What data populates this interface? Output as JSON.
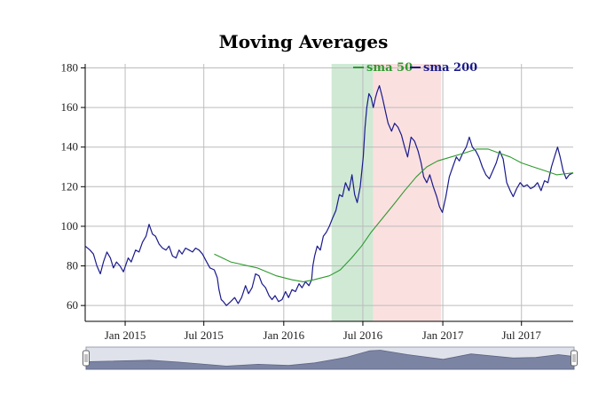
{
  "colors": {
    "price": "#1a1a8c",
    "sma50": "#2e9a2e",
    "sma200": "#1a1a8c",
    "band_green": "#cfe9d5",
    "band_red": "#fbe0e0",
    "grid": "#bcbcbc",
    "range_fill": "#7b84a3",
    "range_bg": "#dfe2ea"
  },
  "range_selector": {
    "left_handle_icon": "range-handle-icon",
    "right_handle_icon": "range-handle-icon"
  },
  "chart_data": {
    "type": "line",
    "title": "Moving Averages",
    "xlabel": "",
    "ylabel": "",
    "xlim": [
      "2014-10-01",
      "2017-10-28"
    ],
    "ylim": [
      52,
      182
    ],
    "yticks": [
      60,
      80,
      100,
      120,
      140,
      160,
      180
    ],
    "xticks": [
      {
        "date": "2015-01-01",
        "label": "Jan 2015"
      },
      {
        "date": "2015-07-01",
        "label": "Jul 2015"
      },
      {
        "date": "2016-01-01",
        "label": "Jan 2016"
      },
      {
        "date": "2016-07-01",
        "label": "Jul 2016"
      },
      {
        "date": "2017-01-01",
        "label": "Jan 2017"
      },
      {
        "date": "2017-07-01",
        "label": "Jul 2017"
      }
    ],
    "grid": true,
    "legend": {
      "placement": "top-right"
    },
    "highlight_bands": [
      {
        "start": "2016-04-20",
        "end": "2016-07-25",
        "color": "green"
      },
      {
        "start": "2016-07-25",
        "end": "2016-12-28",
        "color": "red"
      }
    ],
    "series": [
      {
        "key": "price",
        "legend": false,
        "points": [
          [
            "2014-10-01",
            90
          ],
          [
            "2014-10-12",
            88
          ],
          [
            "2014-10-20",
            86
          ],
          [
            "2014-10-28",
            80
          ],
          [
            "2014-11-05",
            76
          ],
          [
            "2014-11-12",
            82
          ],
          [
            "2014-11-20",
            87
          ],
          [
            "2014-11-28",
            84
          ],
          [
            "2014-12-05",
            79
          ],
          [
            "2014-12-12",
            82
          ],
          [
            "2014-12-20",
            80
          ],
          [
            "2014-12-28",
            77
          ],
          [
            "2015-01-08",
            84
          ],
          [
            "2015-01-15",
            82
          ],
          [
            "2015-01-25",
            88
          ],
          [
            "2015-02-02",
            87
          ],
          [
            "2015-02-10",
            92
          ],
          [
            "2015-02-18",
            95
          ],
          [
            "2015-02-25",
            101
          ],
          [
            "2015-03-05",
            96
          ],
          [
            "2015-03-12",
            95
          ],
          [
            "2015-03-20",
            91
          ],
          [
            "2015-03-28",
            89
          ],
          [
            "2015-04-05",
            88
          ],
          [
            "2015-04-12",
            90
          ],
          [
            "2015-04-20",
            85
          ],
          [
            "2015-04-28",
            84
          ],
          [
            "2015-05-05",
            88
          ],
          [
            "2015-05-12",
            86
          ],
          [
            "2015-05-20",
            89
          ],
          [
            "2015-05-28",
            88
          ],
          [
            "2015-06-05",
            87
          ],
          [
            "2015-06-12",
            89
          ],
          [
            "2015-06-20",
            88
          ],
          [
            "2015-06-28",
            86
          ],
          [
            "2015-07-05",
            83
          ],
          [
            "2015-07-15",
            79
          ],
          [
            "2015-07-25",
            78
          ],
          [
            "2015-08-01",
            74
          ],
          [
            "2015-08-05",
            68
          ],
          [
            "2015-08-10",
            63
          ],
          [
            "2015-08-15",
            62
          ],
          [
            "2015-08-22",
            60
          ],
          [
            "2015-09-01",
            62
          ],
          [
            "2015-09-10",
            64
          ],
          [
            "2015-09-18",
            61
          ],
          [
            "2015-09-26",
            64
          ],
          [
            "2015-10-05",
            70
          ],
          [
            "2015-10-12",
            66
          ],
          [
            "2015-10-20",
            69
          ],
          [
            "2015-10-28",
            76
          ],
          [
            "2015-11-05",
            75
          ],
          [
            "2015-11-12",
            71
          ],
          [
            "2015-11-20",
            69
          ],
          [
            "2015-11-28",
            65
          ],
          [
            "2015-12-05",
            63
          ],
          [
            "2015-12-12",
            65
          ],
          [
            "2015-12-20",
            62
          ],
          [
            "2015-12-28",
            63
          ],
          [
            "2016-01-05",
            67
          ],
          [
            "2016-01-12",
            64
          ],
          [
            "2016-01-20",
            68
          ],
          [
            "2016-01-28",
            67
          ],
          [
            "2016-02-05",
            71
          ],
          [
            "2016-02-12",
            69
          ],
          [
            "2016-02-20",
            72
          ],
          [
            "2016-02-28",
            70
          ],
          [
            "2016-03-05",
            73
          ],
          [
            "2016-03-08",
            80
          ],
          [
            "2016-03-12",
            85
          ],
          [
            "2016-03-18",
            90
          ],
          [
            "2016-03-25",
            88
          ],
          [
            "2016-04-01",
            95
          ],
          [
            "2016-04-08",
            97
          ],
          [
            "2016-04-15",
            100
          ],
          [
            "2016-04-22",
            104
          ],
          [
            "2016-04-30",
            108
          ],
          [
            "2016-05-08",
            116
          ],
          [
            "2016-05-15",
            115
          ],
          [
            "2016-05-22",
            122
          ],
          [
            "2016-05-30",
            118
          ],
          [
            "2016-06-06",
            126
          ],
          [
            "2016-06-12",
            116
          ],
          [
            "2016-06-18",
            112
          ],
          [
            "2016-06-25",
            120
          ],
          [
            "2016-07-02",
            135
          ],
          [
            "2016-07-06",
            150
          ],
          [
            "2016-07-10",
            160
          ],
          [
            "2016-07-15",
            167
          ],
          [
            "2016-07-20",
            165
          ],
          [
            "2016-07-25",
            160
          ],
          [
            "2016-07-30",
            165
          ],
          [
            "2016-08-03",
            168
          ],
          [
            "2016-08-08",
            171
          ],
          [
            "2016-08-15",
            165
          ],
          [
            "2016-08-22",
            158
          ],
          [
            "2016-08-28",
            152
          ],
          [
            "2016-09-05",
            148
          ],
          [
            "2016-09-12",
            152
          ],
          [
            "2016-09-20",
            150
          ],
          [
            "2016-09-28",
            146
          ],
          [
            "2016-10-05",
            140
          ],
          [
            "2016-10-12",
            135
          ],
          [
            "2016-10-20",
            145
          ],
          [
            "2016-10-28",
            143
          ],
          [
            "2016-11-05",
            138
          ],
          [
            "2016-11-12",
            132
          ],
          [
            "2016-11-18",
            125
          ],
          [
            "2016-11-25",
            122
          ],
          [
            "2016-12-02",
            126
          ],
          [
            "2016-12-10",
            120
          ],
          [
            "2016-12-18",
            115
          ],
          [
            "2016-12-24",
            110
          ],
          [
            "2016-12-31",
            107
          ],
          [
            "2017-01-08",
            115
          ],
          [
            "2017-01-16",
            125
          ],
          [
            "2017-01-24",
            130
          ],
          [
            "2017-02-01",
            135
          ],
          [
            "2017-02-08",
            133
          ],
          [
            "2017-02-16",
            137
          ],
          [
            "2017-02-24",
            140
          ],
          [
            "2017-03-03",
            145
          ],
          [
            "2017-03-10",
            140
          ],
          [
            "2017-03-18",
            138
          ],
          [
            "2017-03-25",
            135
          ],
          [
            "2017-04-02",
            130
          ],
          [
            "2017-04-10",
            126
          ],
          [
            "2017-04-18",
            124
          ],
          [
            "2017-04-26",
            128
          ],
          [
            "2017-05-04",
            132
          ],
          [
            "2017-05-12",
            138
          ],
          [
            "2017-05-20",
            134
          ],
          [
            "2017-05-28",
            122
          ],
          [
            "2017-06-05",
            118
          ],
          [
            "2017-06-12",
            115
          ],
          [
            "2017-06-20",
            119
          ],
          [
            "2017-06-28",
            122
          ],
          [
            "2017-07-06",
            120
          ],
          [
            "2017-07-14",
            121
          ],
          [
            "2017-07-22",
            119
          ],
          [
            "2017-07-30",
            120
          ],
          [
            "2017-08-07",
            122
          ],
          [
            "2017-08-15",
            118
          ],
          [
            "2017-08-23",
            123
          ],
          [
            "2017-08-31",
            122
          ],
          [
            "2017-09-08",
            130
          ],
          [
            "2017-09-15",
            135
          ],
          [
            "2017-09-22",
            140
          ],
          [
            "2017-09-28",
            135
          ],
          [
            "2017-10-05",
            128
          ],
          [
            "2017-10-12",
            124
          ],
          [
            "2017-10-19",
            126
          ],
          [
            "2017-10-28",
            127
          ]
        ]
      },
      {
        "key": "sma50",
        "name": "sma 50",
        "legend": true,
        "points": [
          [
            "2015-07-25",
            86
          ],
          [
            "2015-09-01",
            82
          ],
          [
            "2015-11-01",
            79
          ],
          [
            "2015-12-15",
            75
          ],
          [
            "2016-01-20",
            73
          ],
          [
            "2016-02-15",
            72
          ],
          [
            "2016-03-10",
            73
          ],
          [
            "2016-04-15",
            75
          ],
          [
            "2016-05-10",
            78
          ],
          [
            "2016-06-05",
            84
          ],
          [
            "2016-06-28",
            90
          ],
          [
            "2016-07-20",
            97
          ],
          [
            "2016-08-15",
            104
          ],
          [
            "2016-09-10",
            111
          ],
          [
            "2016-10-05",
            118
          ],
          [
            "2016-11-01",
            125
          ],
          [
            "2016-11-25",
            130
          ],
          [
            "2016-12-20",
            133
          ],
          [
            "2017-01-20",
            135
          ],
          [
            "2017-02-20",
            137
          ],
          [
            "2017-03-20",
            139
          ],
          [
            "2017-04-15",
            139
          ],
          [
            "2017-05-10",
            137
          ],
          [
            "2017-06-05",
            135
          ],
          [
            "2017-07-01",
            132
          ],
          [
            "2017-07-28",
            130
          ],
          [
            "2017-08-25",
            128
          ],
          [
            "2017-09-20",
            126
          ],
          [
            "2017-10-28",
            127
          ]
        ]
      },
      {
        "key": "sma200",
        "name": "sma 200",
        "legend": true,
        "points": []
      }
    ],
    "navigator": {
      "points": [
        [
          "2014-10-01",
          90
        ],
        [
          "2015-02-25",
          101
        ],
        [
          "2015-05-01",
          88
        ],
        [
          "2015-08-20",
          60
        ],
        [
          "2015-11-01",
          72
        ],
        [
          "2016-01-10",
          64
        ],
        [
          "2016-03-10",
          82
        ],
        [
          "2016-05-20",
          120
        ],
        [
          "2016-07-15",
          167
        ],
        [
          "2016-08-08",
          171
        ],
        [
          "2016-10-10",
          140
        ],
        [
          "2016-12-31",
          107
        ],
        [
          "2017-03-05",
          145
        ],
        [
          "2017-06-10",
          116
        ],
        [
          "2017-08-01",
          120
        ],
        [
          "2017-09-22",
          140
        ],
        [
          "2017-10-28",
          127
        ]
      ]
    }
  }
}
